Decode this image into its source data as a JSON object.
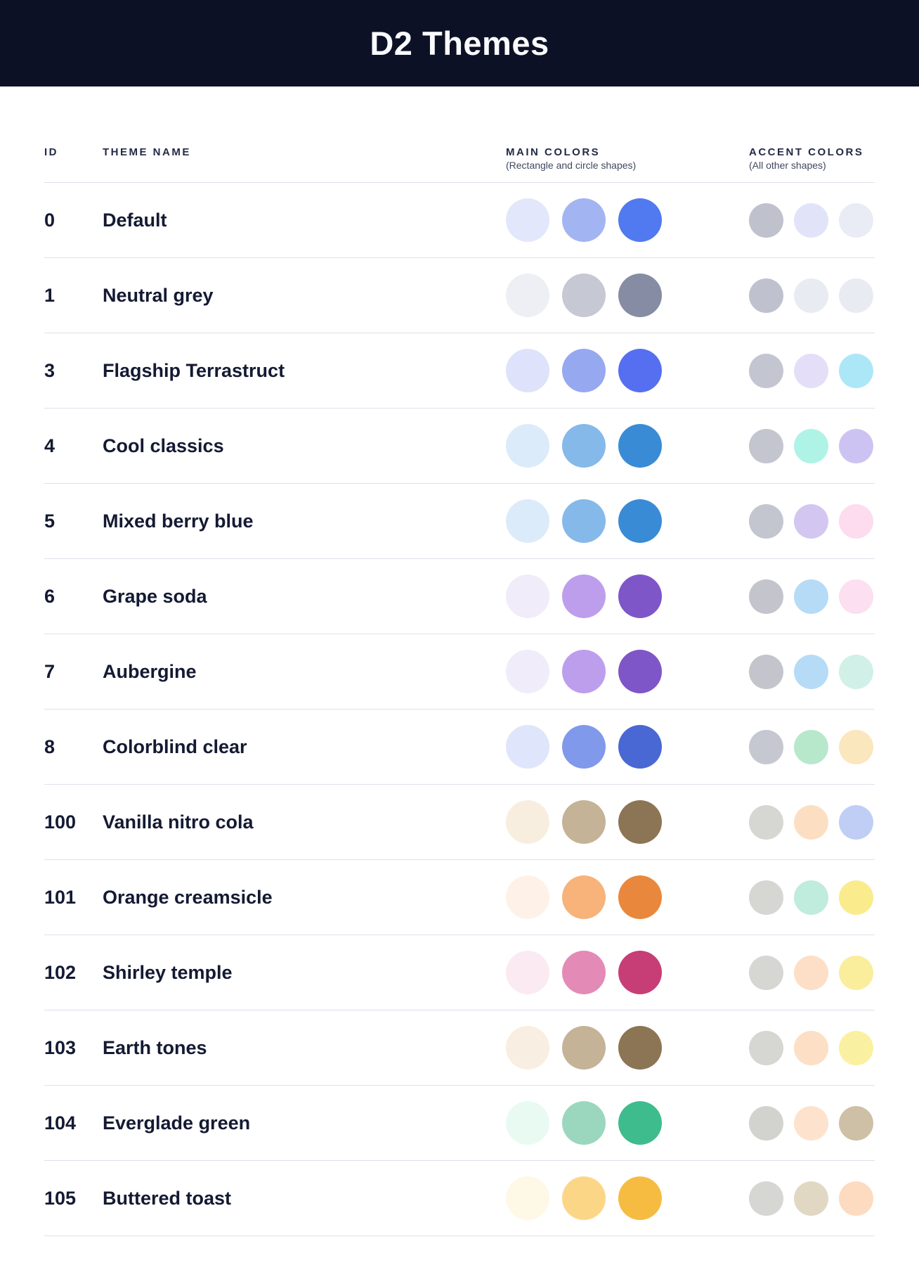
{
  "header": {
    "title": "D2 Themes"
  },
  "table": {
    "columns": {
      "id_label": "ID",
      "name_label": "THEME NAME",
      "main_label": "MAIN COLORS",
      "main_sublabel": "(Rectangle and circle shapes)",
      "accent_label": "ACCENT COLORS",
      "accent_sublabel": "(All other shapes)"
    },
    "themes": [
      {
        "id": "0",
        "name": "Default",
        "main_colors": [
          "#E3E7FB",
          "#A3B4F2",
          "#5179F0"
        ],
        "accent_colors": [
          "#BFC1CD",
          "#E1E4F9",
          "#E9ECF4"
        ]
      },
      {
        "id": "1",
        "name": "Neutral grey",
        "main_colors": [
          "#EDEFF5",
          "#C6C9D4",
          "#868CA3"
        ],
        "accent_colors": [
          "#BFC2CE",
          "#E9EBF3",
          "#E9EBF3"
        ]
      },
      {
        "id": "3",
        "name": "Flagship Terrastruct",
        "main_colors": [
          "#DEE3FB",
          "#96A8F0",
          "#566FF0"
        ],
        "accent_colors": [
          "#C3C5D1",
          "#E5DEF8",
          "#ACE7F7"
        ]
      },
      {
        "id": "4",
        "name": "Cool classics",
        "main_colors": [
          "#DCEBFA",
          "#85B9E9",
          "#3A8BD5"
        ],
        "accent_colors": [
          "#C3C5CF",
          "#AFF3E7",
          "#CDC3F3"
        ]
      },
      {
        "id": "5",
        "name": "Mixed berry blue",
        "main_colors": [
          "#DCEBFA",
          "#85B9E9",
          "#3A8BD5"
        ],
        "accent_colors": [
          "#C3C5CF",
          "#D3C7F2",
          "#FCDCEE"
        ]
      },
      {
        "id": "6",
        "name": "Grape soda",
        "main_colors": [
          "#F1ECFA",
          "#BD9EEC",
          "#7E56C8"
        ],
        "accent_colors": [
          "#C4C4CC",
          "#B6DBF7",
          "#FCDFF0"
        ]
      },
      {
        "id": "7",
        "name": "Aubergine",
        "main_colors": [
          "#F1ECFA",
          "#BD9EEC",
          "#7E56C8"
        ],
        "accent_colors": [
          "#C4C4CC",
          "#B6DBF7",
          "#D1F0E8"
        ]
      },
      {
        "id": "8",
        "name": "Colorblind clear",
        "main_colors": [
          "#DFE6FB",
          "#8099EB",
          "#4968D3"
        ],
        "accent_colors": [
          "#C5C7D1",
          "#B8E8CC",
          "#FBE7BE"
        ]
      },
      {
        "id": "100",
        "name": "Vanilla nitro cola",
        "main_colors": [
          "#F8EEE0",
          "#C4B396",
          "#8B7555"
        ],
        "accent_colors": [
          "#D6D6D3",
          "#FCDFC2",
          "#C0CEF6"
        ]
      },
      {
        "id": "101",
        "name": "Orange creamsicle",
        "main_colors": [
          "#FEF2E8",
          "#F7B379",
          "#E9883D"
        ],
        "accent_colors": [
          "#D6D6D2",
          "#BFECDC",
          "#FAEC8C"
        ]
      },
      {
        "id": "102",
        "name": "Shirley temple",
        "main_colors": [
          "#FCEAF2",
          "#E48AB6",
          "#C73E76"
        ],
        "accent_colors": [
          "#D6D6D2",
          "#FCDFC6",
          "#FAEE9D"
        ]
      },
      {
        "id": "103",
        "name": "Earth tones",
        "main_colors": [
          "#F8EEE1",
          "#C4B396",
          "#8B7554"
        ],
        "accent_colors": [
          "#D6D6D2",
          "#FCDFC5",
          "#FAF0A2"
        ]
      },
      {
        "id": "104",
        "name": "Everglade green",
        "main_colors": [
          "#E9FAF2",
          "#9BD7BE",
          "#3EBC8D"
        ],
        "accent_colors": [
          "#D2D2CE",
          "#FDE2CD",
          "#CEC0A6"
        ]
      },
      {
        "id": "105",
        "name": "Buttered toast",
        "main_colors": [
          "#FEF8E6",
          "#FCD687",
          "#F6BC42"
        ],
        "accent_colors": [
          "#D6D6D2",
          "#E1D8C4",
          "#FDDBC0"
        ]
      }
    ]
  },
  "colors": {
    "banner_bg": "#0D1126",
    "title_text": "#FAFBFE",
    "column_label_text": "#232A45",
    "column_sublabel_text": "#40485F",
    "row_text": "#141A33",
    "divider": "#DEE1EB",
    "page_bg": "#FFFFFF"
  }
}
